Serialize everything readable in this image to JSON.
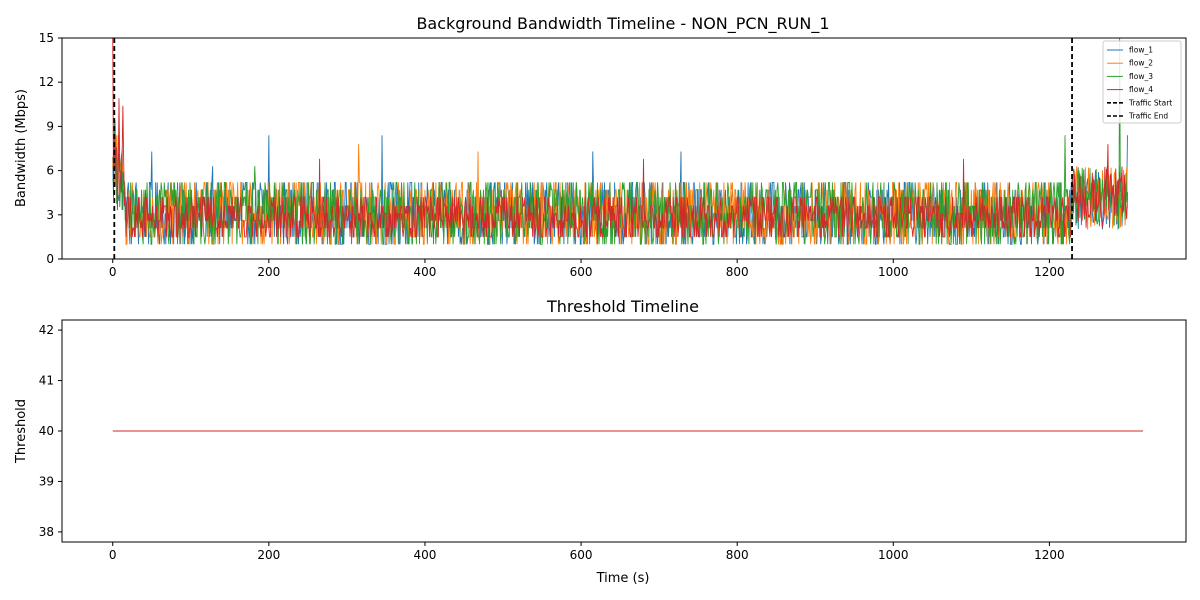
{
  "chart_data": [
    {
      "type": "line",
      "title": "Background Bandwidth Timeline - NON_PCN_RUN_1",
      "xlabel": "",
      "ylabel": "Bandwidth (Mbps)",
      "xlim": [
        -65,
        1375
      ],
      "ylim": [
        0,
        15
      ],
      "xticks": [
        0,
        200,
        400,
        600,
        800,
        1000,
        1200
      ],
      "yticks": [
        0,
        3,
        6,
        9,
        12,
        15
      ],
      "x_range": [
        0,
        1300
      ],
      "legend_position": "top-right",
      "series": [
        {
          "name": "flow_1",
          "color": "#1f77b4",
          "typical_range": [
            1,
            5.2
          ],
          "peaks": [
            [
              2,
              9.4
            ],
            [
              50,
              7.3
            ],
            [
              128,
              6.3
            ],
            [
              200,
              8.4
            ],
            [
              345,
              8.4
            ],
            [
              615,
              7.3
            ],
            [
              728,
              7.3
            ],
            [
              1300,
              8.4
            ]
          ]
        },
        {
          "name": "flow_2",
          "color": "#ff7f0e",
          "typical_range": [
            1,
            5.2
          ],
          "peaks": [
            [
              5,
              8.4
            ],
            [
              10,
              6.3
            ],
            [
              315,
              7.8
            ],
            [
              468,
              7.3
            ],
            [
              1290,
              6.3
            ]
          ]
        },
        {
          "name": "flow_3",
          "color": "#2ca02c",
          "typical_range": [
            1,
            5.2
          ],
          "peaks": [
            [
              3,
              9.4
            ],
            [
              182,
              6.3
            ],
            [
              1220,
              8.4
            ],
            [
              1290,
              15
            ]
          ]
        },
        {
          "name": "flow_4",
          "color": "#d62728",
          "typical_range": [
            1.5,
            4.6
          ],
          "peaks": [
            [
              0,
              15
            ],
            [
              8,
              10.9
            ],
            [
              13,
              10.4
            ],
            [
              265,
              6.8
            ],
            [
              680,
              6.8
            ],
            [
              1090,
              6.8
            ],
            [
              1275,
              7.8
            ]
          ]
        }
      ],
      "vlines": [
        {
          "name": "Traffic Start",
          "x": 2,
          "color": "#000000",
          "style": "dashed"
        },
        {
          "name": "Traffic End",
          "x": 1229,
          "color": "#000000",
          "style": "dashed"
        }
      ]
    },
    {
      "type": "line",
      "title": "Threshold Timeline",
      "xlabel": "Time (s)",
      "ylabel": "Threshold",
      "xlim": [
        -65,
        1375
      ],
      "ylim": [
        37.8,
        42.2
      ],
      "xticks": [
        0,
        200,
        400,
        600,
        800,
        1000,
        1200
      ],
      "yticks": [
        38,
        39,
        40,
        41,
        42
      ],
      "series": [
        {
          "color": "#d62728",
          "x": [
            0,
            1320
          ],
          "y": [
            40,
            40
          ]
        }
      ]
    }
  ]
}
